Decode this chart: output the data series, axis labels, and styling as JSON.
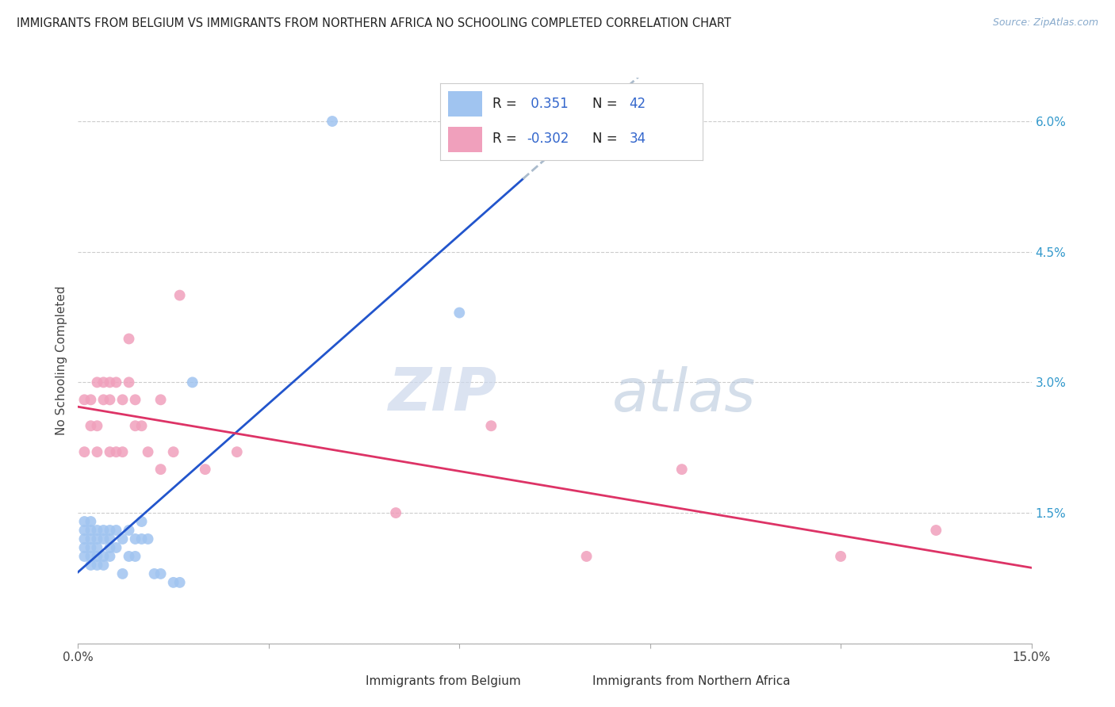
{
  "title": "IMMIGRANTS FROM BELGIUM VS IMMIGRANTS FROM NORTHERN AFRICA NO SCHOOLING COMPLETED CORRELATION CHART",
  "source": "Source: ZipAtlas.com",
  "ylabel": "No Schooling Completed",
  "xlim": [
    0.0,
    0.15
  ],
  "ylim": [
    0.0,
    0.065
  ],
  "xticks": [
    0.0,
    0.03,
    0.06,
    0.09,
    0.12,
    0.15
  ],
  "yticks": [
    0.0,
    0.015,
    0.03,
    0.045,
    0.06
  ],
  "ytick_labels": [
    "",
    "1.5%",
    "3.0%",
    "4.5%",
    "6.0%"
  ],
  "color_belgium": "#a0c4f0",
  "color_northern_africa": "#f0a0bc",
  "color_line_belgium": "#2255cc",
  "color_line_northern_africa": "#dd3366",
  "color_dashed": "#aabbcc",
  "belgium_x": [
    0.001,
    0.001,
    0.001,
    0.001,
    0.001,
    0.002,
    0.002,
    0.002,
    0.002,
    0.002,
    0.002,
    0.003,
    0.003,
    0.003,
    0.003,
    0.003,
    0.004,
    0.004,
    0.004,
    0.004,
    0.005,
    0.005,
    0.005,
    0.005,
    0.006,
    0.006,
    0.007,
    0.007,
    0.008,
    0.008,
    0.009,
    0.009,
    0.01,
    0.01,
    0.011,
    0.012,
    0.013,
    0.015,
    0.016,
    0.018,
    0.04,
    0.06
  ],
  "belgium_y": [
    0.01,
    0.011,
    0.012,
    0.013,
    0.014,
    0.009,
    0.01,
    0.012,
    0.013,
    0.011,
    0.014,
    0.009,
    0.01,
    0.011,
    0.012,
    0.013,
    0.009,
    0.01,
    0.012,
    0.013,
    0.01,
    0.011,
    0.012,
    0.013,
    0.011,
    0.013,
    0.008,
    0.012,
    0.01,
    0.013,
    0.01,
    0.012,
    0.012,
    0.014,
    0.012,
    0.008,
    0.008,
    0.007,
    0.007,
    0.03,
    0.06,
    0.038
  ],
  "northern_africa_x": [
    0.001,
    0.001,
    0.002,
    0.002,
    0.003,
    0.003,
    0.003,
    0.004,
    0.004,
    0.005,
    0.005,
    0.005,
    0.006,
    0.006,
    0.007,
    0.007,
    0.008,
    0.008,
    0.009,
    0.009,
    0.01,
    0.011,
    0.013,
    0.013,
    0.015,
    0.016,
    0.02,
    0.025,
    0.05,
    0.065,
    0.08,
    0.095,
    0.12,
    0.135
  ],
  "northern_africa_y": [
    0.028,
    0.022,
    0.025,
    0.028,
    0.03,
    0.025,
    0.022,
    0.03,
    0.028,
    0.03,
    0.028,
    0.022,
    0.03,
    0.022,
    0.028,
    0.022,
    0.035,
    0.03,
    0.028,
    0.025,
    0.025,
    0.022,
    0.028,
    0.02,
    0.022,
    0.04,
    0.02,
    0.022,
    0.015,
    0.025,
    0.01,
    0.02,
    0.01,
    0.013
  ],
  "legend_r1_label": "R = ",
  "legend_r1_val": " 0.351",
  "legend_n1_label": "  N = ",
  "legend_n1_val": "42",
  "legend_r2_label": "R = ",
  "legend_r2_val": "-0.302",
  "legend_n2_label": "  N = ",
  "legend_n2_val": "34"
}
